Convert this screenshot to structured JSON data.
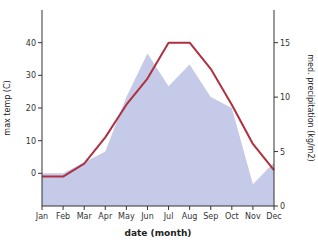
{
  "chart_data": {
    "type": "line",
    "xlabel": "date (month)",
    "ylabel": "max temp (C)",
    "y2label": "med. precipitation (kg/m2)",
    "categories": [
      "Jan",
      "Feb",
      "Mar",
      "Apr",
      "May",
      "Jun",
      "Jul",
      "Aug",
      "Sep",
      "Oct",
      "Nov",
      "Dec"
    ],
    "series": [
      {
        "type": "area",
        "axis": "y2",
        "color": "#b0b8e0",
        "values": [
          3,
          3,
          4,
          5,
          10,
          14,
          11,
          13,
          10,
          9,
          2,
          4
        ]
      },
      {
        "type": "line",
        "color": "#b03040",
        "values": [
          -1,
          -1,
          3,
          11,
          21,
          29,
          40,
          40,
          32,
          21,
          9,
          1
        ]
      }
    ],
    "ylim": [
      -10,
      50
    ],
    "yticks": [
      0,
      10,
      20,
      30,
      40
    ],
    "y2lim": [
      0,
      18
    ],
    "y2ticks": [
      0,
      5,
      10,
      15
    ],
    "grid": false
  }
}
